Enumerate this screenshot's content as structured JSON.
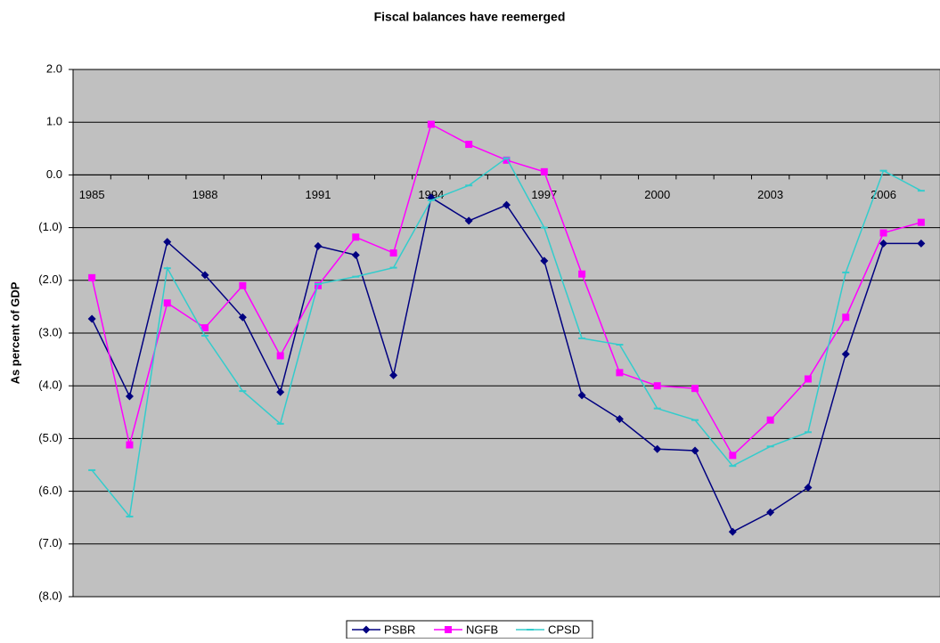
{
  "chart_data": {
    "type": "line",
    "title": "Fiscal balances have reemerged",
    "y_label": "As percent of GDP",
    "categories": [
      "1985",
      null,
      null,
      "1988",
      null,
      null,
      "1991",
      null,
      null,
      "1994",
      null,
      null,
      "1997",
      null,
      null,
      "2000",
      null,
      null,
      "2003",
      null,
      null,
      "2006",
      null
    ],
    "series": [
      {
        "name": "PSBR",
        "color": "#000080",
        "marker": "diamond",
        "values": [
          -2.73,
          -4.2,
          -1.27,
          -1.9,
          -2.7,
          -4.12,
          -1.35,
          -1.52,
          -3.8,
          -0.43,
          -0.87,
          -0.57,
          -1.63,
          -4.18,
          -4.63,
          -5.2,
          -5.23,
          -6.77,
          -6.4,
          -5.93,
          -3.4,
          -1.3,
          -1.3
        ]
      },
      {
        "name": "NGFB",
        "color": "#ff00ff",
        "marker": "square",
        "values": [
          -1.95,
          -5.12,
          -2.43,
          -2.9,
          -2.1,
          -3.43,
          -2.1,
          -1.18,
          -1.48,
          0.96,
          0.58,
          0.28,
          0.06,
          -1.88,
          -3.75,
          -4.0,
          -4.05,
          -5.32,
          -4.65,
          -3.87,
          -2.7,
          -1.1,
          -0.9
        ]
      },
      {
        "name": "CPSD",
        "color": "#33cccc",
        "marker": "dash",
        "values": [
          -5.6,
          -6.48,
          -1.77,
          -3.05,
          -4.1,
          -4.72,
          -2.07,
          -1.93,
          -1.76,
          -0.48,
          -0.2,
          0.32,
          -1.0,
          -3.1,
          -3.22,
          -4.43,
          -4.65,
          -5.52,
          -5.15,
          -4.88,
          -1.85,
          0.08,
          -0.3
        ]
      }
    ],
    "ylim": [
      -8,
      2
    ],
    "yticks": [
      {
        "value": -8,
        "label": "(8.0)"
      },
      {
        "value": -7,
        "label": "(7.0)"
      },
      {
        "value": -6,
        "label": "(6.0)"
      },
      {
        "value": -5,
        "label": "(5.0)"
      },
      {
        "value": -4,
        "label": "(4.0)"
      },
      {
        "value": -3,
        "label": "(3.0)"
      },
      {
        "value": -2,
        "label": "(2.0)"
      },
      {
        "value": -1,
        "label": "(1.0)"
      },
      {
        "value": 0,
        "label": "0.0"
      },
      {
        "value": 1,
        "label": "1.0"
      },
      {
        "value": 2,
        "label": "2.0"
      }
    ],
    "grid": true,
    "legend": "bottom"
  }
}
